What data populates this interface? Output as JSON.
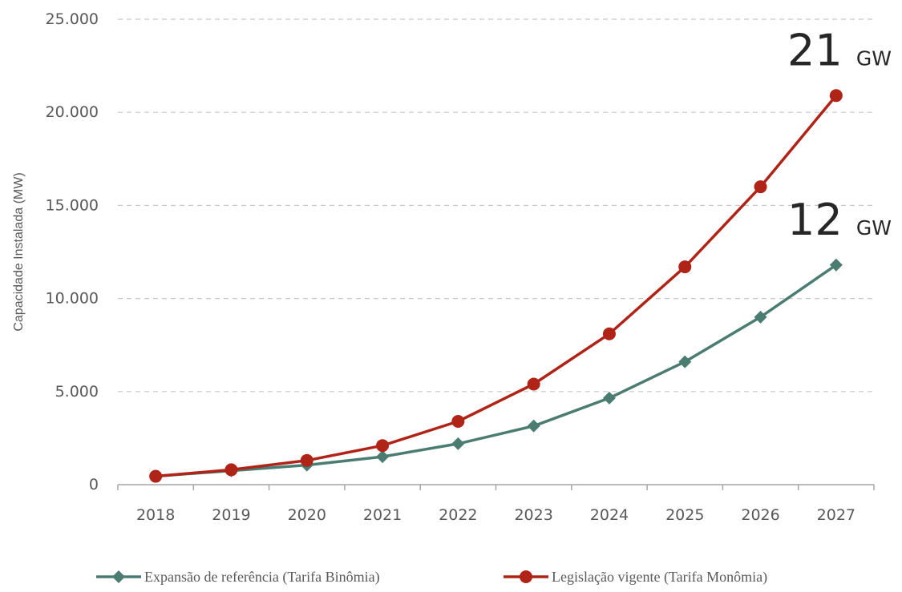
{
  "chart_data": {
    "type": "line",
    "title": "",
    "xlabel": "",
    "ylabel": "Capacidade Instalada (MW)",
    "x": [
      "2018",
      "2019",
      "2020",
      "2021",
      "2022",
      "2023",
      "2024",
      "2025",
      "2026",
      "2027"
    ],
    "ylim": [
      0,
      25000
    ],
    "yticks": [
      0,
      5000,
      10000,
      15000,
      20000,
      25000
    ],
    "ytick_labels": [
      "0",
      "5.000",
      "10.000",
      "15.000",
      "20.000",
      "25.000"
    ],
    "grid": true,
    "legend_position": "bottom",
    "series": [
      {
        "name": "Expansão de referência (Tarifa Binômia)",
        "color": "#4a7c72",
        "marker": "diamond",
        "values": [
          450,
          750,
          1050,
          1500,
          2200,
          3150,
          4650,
          6600,
          9000,
          11800
        ]
      },
      {
        "name": "Legislação vigente (Tarifa Monômia)",
        "color": "#b02418",
        "marker": "circle",
        "values": [
          450,
          800,
          1300,
          2100,
          3400,
          5400,
          8100,
          11700,
          16000,
          20900
        ]
      }
    ],
    "annotations": [
      {
        "value": "21",
        "unit": "GW",
        "series": 1
      },
      {
        "value": "12",
        "unit": "GW",
        "series": 0
      }
    ]
  }
}
